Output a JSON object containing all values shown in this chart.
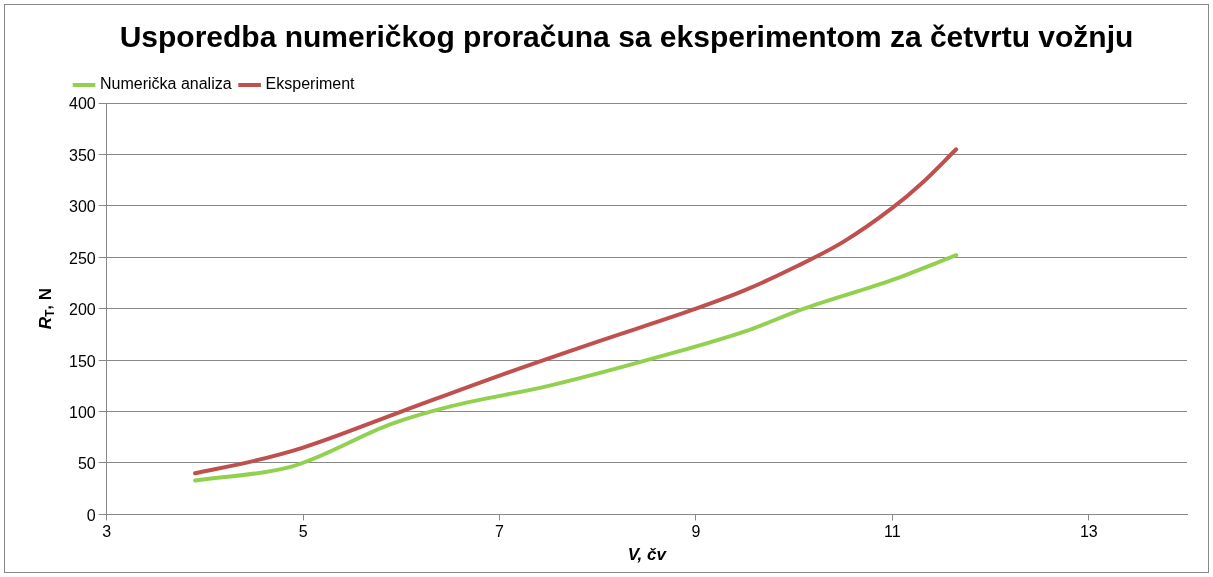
{
  "chart_data": {
    "type": "line",
    "title": "Usporedba numeričkog proračuna sa eksperimentom za četvrtu vožnju",
    "xlabel": "V, čv",
    "ylabel": "R$_{T}$, N",
    "xlim": [
      3,
      14
    ],
    "xticks": [
      3,
      5,
      7,
      9,
      11,
      13
    ],
    "ylim": [
      0,
      400
    ],
    "yticks": [
      0,
      50,
      100,
      150,
      200,
      250,
      300,
      350,
      400
    ],
    "grid": "y",
    "legend": "top left",
    "marker": "none",
    "line_style": "solid",
    "series": [
      {
        "name": "Numerička analiza",
        "color": "#92d050",
        "x": [
          3.9,
          4.9,
          5.9,
          6.5,
          7.5,
          8.5,
          9.5,
          10.1,
          11,
          11.65
        ],
        "values": [
          33,
          47,
          88,
          105,
          125,
          150,
          178,
          200,
          228,
          252
        ]
      },
      {
        "name": "Eksperiment",
        "color": "#c0504d",
        "x": [
          3.9,
          4.5,
          5,
          6,
          7,
          8,
          9,
          9.5,
          10,
          10.5,
          11,
          11.3,
          11.65
        ],
        "values": [
          40,
          52,
          65,
          100,
          135,
          168,
          200,
          218,
          240,
          265,
          298,
          322,
          355
        ]
      }
    ]
  }
}
